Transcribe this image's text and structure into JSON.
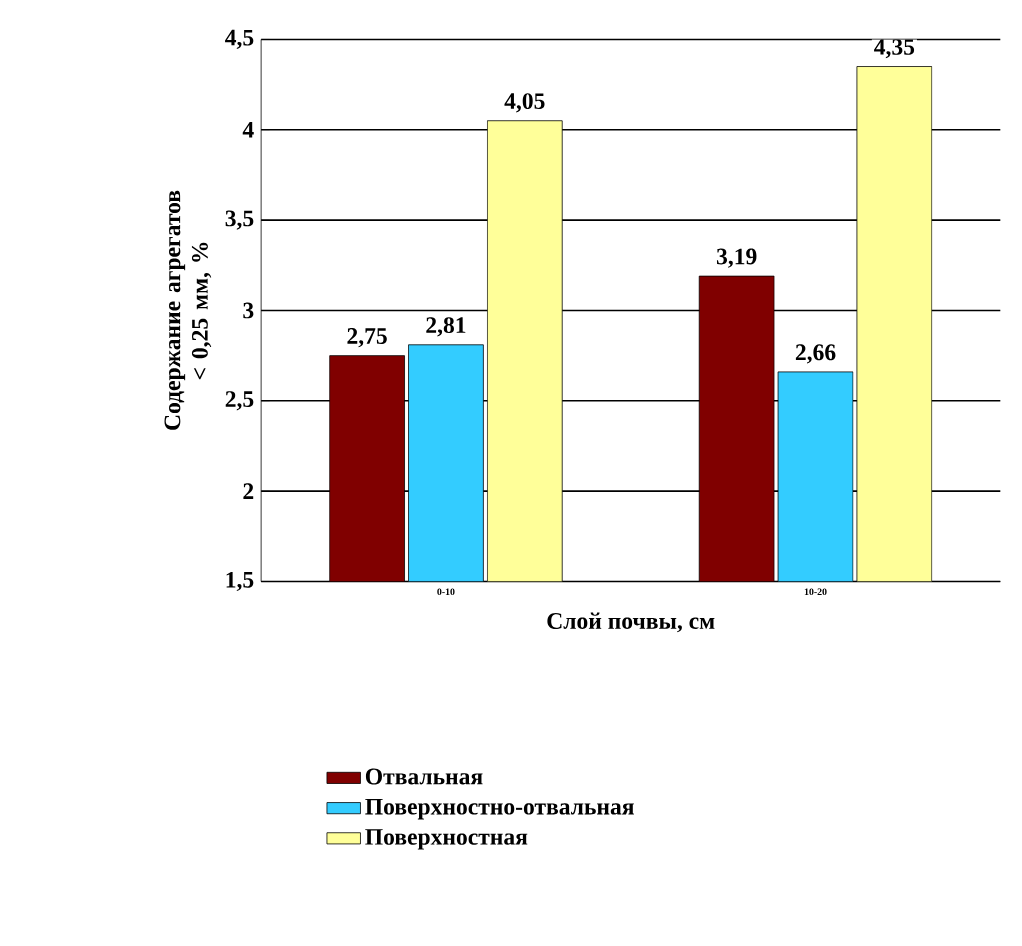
{
  "chart_data": {
    "type": "bar",
    "xlabel": "Слой почвы, см",
    "ylabel": "Содержание агрегатов < 0,25 мм, %",
    "categories": [
      "0-10",
      "10-20"
    ],
    "series": [
      {
        "name": "Отвальная",
        "color": "#800000",
        "values": [
          2.75,
          3.19
        ],
        "value_labels": [
          "2,75",
          "3,19"
        ]
      },
      {
        "name": "Поверхностно-отвальная",
        "color": "#33ccff",
        "values": [
          2.81,
          2.66
        ],
        "value_labels": [
          "2,81",
          "2,66"
        ]
      },
      {
        "name": "Поверхностная",
        "color": "#ffff99",
        "values": [
          4.05,
          4.35
        ],
        "value_labels": [
          "4,05",
          "4,35"
        ]
      }
    ],
    "ylim": [
      1.5,
      4.5
    ],
    "yticks": [
      {
        "value": 1.5,
        "label": "1,5"
      },
      2,
      {
        "value": 2.5,
        "label": "2,5"
      },
      3,
      {
        "value": 3.5,
        "label": "3,5"
      },
      4,
      {
        "value": 4.5,
        "label": "4,5"
      }
    ],
    "grid": "y",
    "legend": "bottom"
  }
}
